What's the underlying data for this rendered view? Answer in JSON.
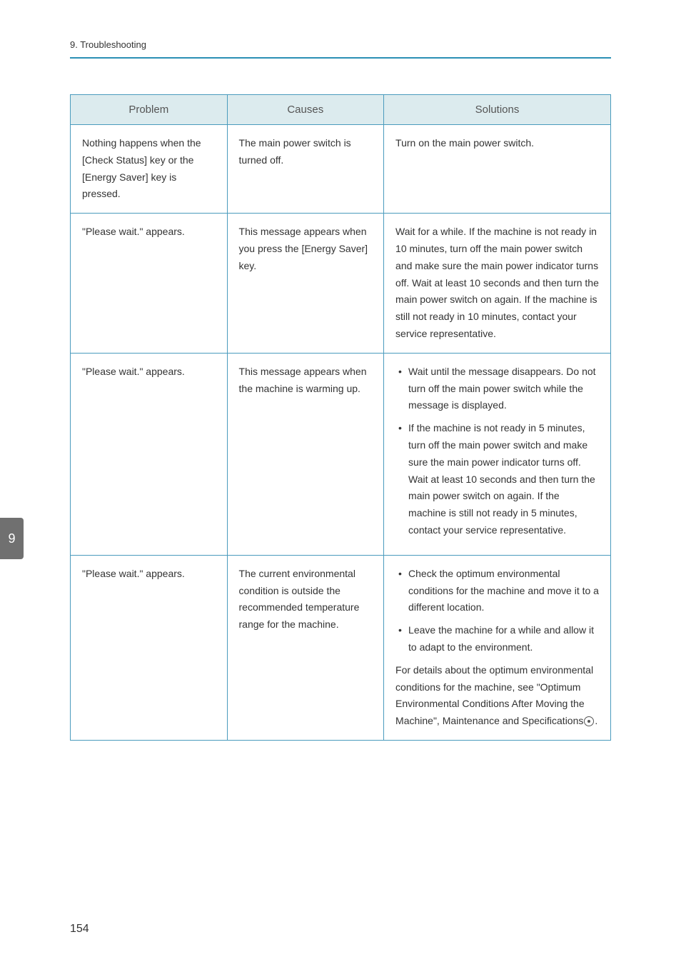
{
  "header": {
    "breadcrumb": "9. Troubleshooting"
  },
  "table": {
    "headers": {
      "problem": "Problem",
      "causes": "Causes",
      "solutions": "Solutions"
    },
    "rows": [
      {
        "problem": "Nothing happens when the [Check Status] key or the [Energy Saver] key is pressed.",
        "causes": "The main power switch is turned off.",
        "solutions_text": "Turn on the main power switch."
      },
      {
        "problem": "\"Please wait.\" appears.",
        "causes": "This message appears when you press the [Energy Saver] key.",
        "solutions_text": "Wait for a while. If the machine is not ready in 10 minutes, turn off the main power switch and make sure the main power indicator turns off. Wait at least 10 seconds and then turn the main power switch on again. If the machine is still not ready in 10 minutes, contact your service representative."
      },
      {
        "problem": "\"Please wait.\" appears.",
        "causes": "This message appears when the machine is warming up.",
        "solutions_list": [
          "Wait until the message disappears. Do not turn off the main power switch while the message is displayed.",
          "If the machine is not ready in 5 minutes, turn off the main power switch and make sure the main power indicator turns off. Wait at least 10 seconds and then turn the main power switch on again. If the machine is still not ready in 5 minutes, contact your service representative."
        ]
      },
      {
        "problem": "\"Please wait.\" appears.",
        "causes": "The current environmental condition is outside the recommended temperature range for the machine.",
        "solutions_list": [
          "Check the optimum environmental conditions for the machine and move it to a different location.",
          "Leave the machine for a while and allow it to adapt to the environment."
        ],
        "solutions_footer_pre": "For details about the optimum environmental conditions for the machine, see \"Optimum Environmental Conditions After Moving the Machine\", Maintenance and Specifications",
        "solutions_footer_post": "."
      }
    ]
  },
  "sideTab": "9",
  "pageNumber": "154",
  "colors": {
    "divider": "#2b8fb5",
    "border": "#4a9bbd",
    "header_bg": "#dcebee",
    "side_tab_bg": "#707070"
  }
}
